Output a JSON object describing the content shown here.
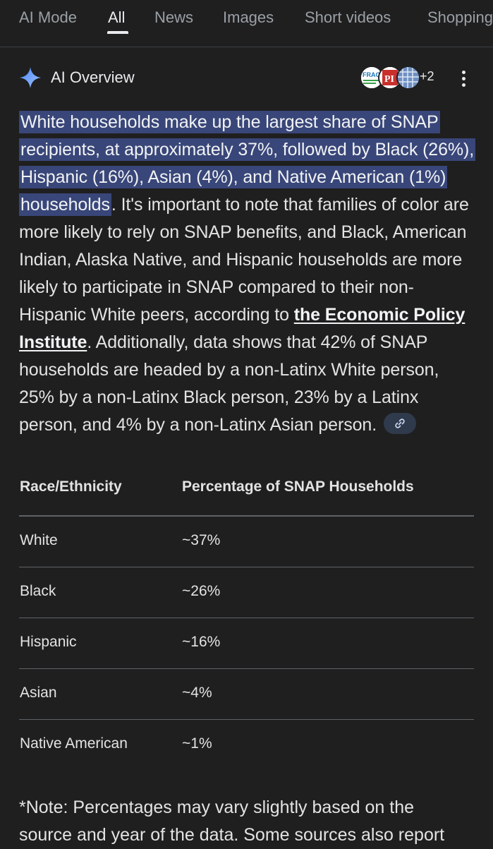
{
  "tabs": [
    {
      "label": "AI Mode"
    },
    {
      "label": "All"
    },
    {
      "label": "News"
    },
    {
      "label": "Images"
    },
    {
      "label": "Short videos"
    },
    {
      "label": "Shopping"
    }
  ],
  "active_tab": "All",
  "overview": {
    "title": "AI Overview",
    "more_sources": "+2",
    "source_icons": [
      "frac-logo",
      "epi-logo",
      "grid-logo"
    ],
    "source_labels": {
      "frac": "FRAC",
      "pi": "PI"
    }
  },
  "answer": {
    "highlighted": "White households make up the largest share of SNAP recipients, at approximately 37%, followed by Black (26%), Hispanic (16%), Asian (4%), and Native American (1%) households",
    "text_after_highlight": ". It's important to note that families of color are more likely to rely on SNAP benefits, and Black, American Indian, Alaska Native, and Hispanic households are more likely to participate in SNAP compared to their non-Hispanic White peers, according to ",
    "link_text": "the Economic Policy Institute",
    "text_after_link": ". Additionally, data shows that 42% of SNAP households are headed by a non-Latinx White person, 25% by a non-Latinx Black person, 23% by a Latinx person, and 4% by a non-Latinx Asian person."
  },
  "table": {
    "headers": [
      "Race/Ethnicity",
      "Percentage of SNAP Households"
    ],
    "rows": [
      [
        "White",
        "~37%"
      ],
      [
        "Black",
        "~26%"
      ],
      [
        "Hispanic",
        "~16%"
      ],
      [
        "Asian",
        "~4%"
      ],
      [
        "Native American",
        "~1%"
      ]
    ]
  },
  "note": {
    "line1": "*Note: Percentages may vary slightly based on the",
    "line2": "source and year of the data. Some sources also report"
  },
  "colors": {
    "background": "#1f1f1f",
    "highlight": "#394679",
    "sparkle": "#8ab4f8",
    "chip": "#303a4d"
  }
}
